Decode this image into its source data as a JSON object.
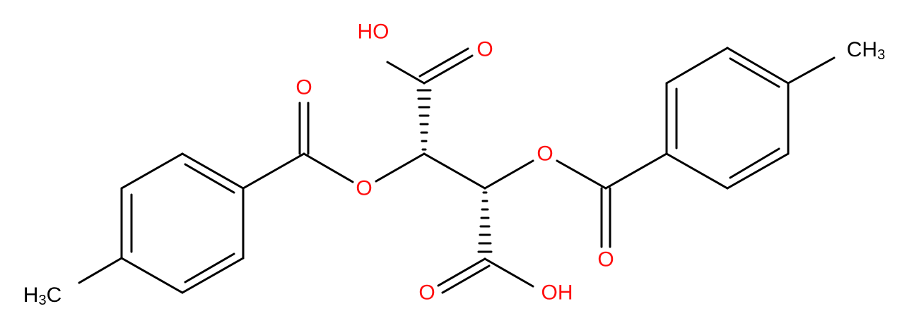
{
  "atoms": [
    {
      "label": "HO"
    },
    {
      "label": "O"
    },
    {
      "label": "O"
    },
    {
      "label": "O"
    },
    {
      "label": "O"
    },
    {
      "label": "CH",
      "sub": "3"
    },
    {
      "prefix": "H",
      "sub": "3",
      "label": "C"
    },
    {
      "label": "O"
    },
    {
      "label": "O"
    },
    {
      "label": "OH"
    }
  ]
}
